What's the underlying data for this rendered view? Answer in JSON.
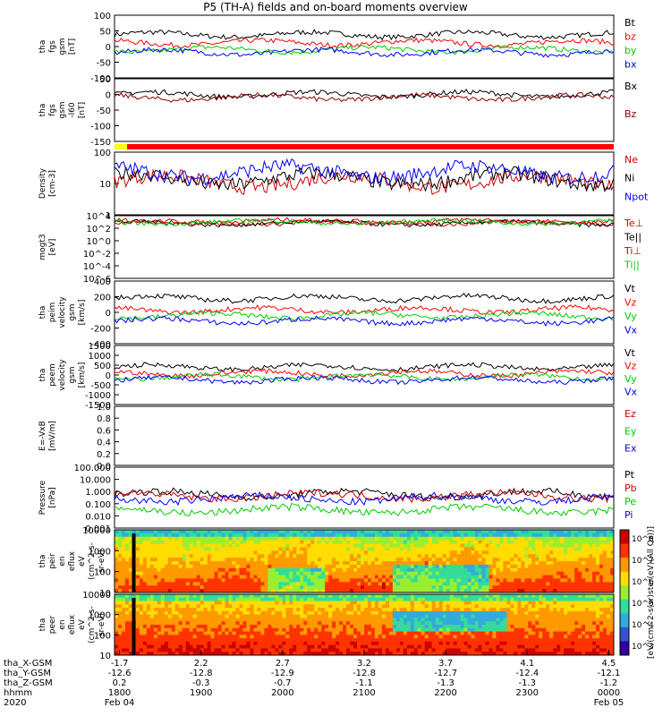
{
  "title": "P5 (TH-A) fields and on-board moments overview",
  "chart_data": {
    "type": "line",
    "x_range": [
      "1800",
      "0000"
    ],
    "panels": [
      {
        "id": "fgs-gsm",
        "ylabel": [
          "tha",
          "fgs",
          "gsm",
          "[nT]"
        ],
        "ylim": [
          -100,
          100
        ],
        "yticks": [
          "100",
          "50",
          "0",
          "-50",
          "-100"
        ],
        "series": [
          {
            "name": "Bt",
            "color": "#000000",
            "level": 38
          },
          {
            "name": "bz",
            "color": "#ff0000",
            "level": 12
          },
          {
            "name": "by",
            "color": "#00cc00",
            "level": -10
          },
          {
            "name": "bx",
            "color": "#0000ff",
            "level": -18
          }
        ]
      },
      {
        "id": "fgs-gsm-ll60",
        "ylabel": [
          "tha",
          "fgs",
          "gsm",
          "-l60",
          "[nT]"
        ],
        "ylim": [
          -150,
          50
        ],
        "yticks": [
          "50",
          "0",
          "-50",
          "-100",
          "-150"
        ],
        "series": [
          {
            "name": "Bx",
            "color": "#000000",
            "level": 0
          },
          {
            "name": "Bz",
            "color": "#8b0000",
            "level": -10
          }
        ]
      },
      {
        "id": "density",
        "ylabel": [
          "Density",
          "[cm-3]"
        ],
        "ylim": [
          0.5,
          200
        ],
        "log": true,
        "yticks": [
          "100",
          "10",
          "1"
        ],
        "series": [
          {
            "name": "Ne",
            "color": "#cc0000",
            "level": 12
          },
          {
            "name": "Ni",
            "color": "#000000",
            "level": 15
          },
          {
            "name": "Npot",
            "color": "#0000ff",
            "level": 30
          }
        ]
      },
      {
        "id": "temperature",
        "ylabel": [
          "mogt3",
          "[eV]"
        ],
        "ylim": [
          1e-05,
          10000
        ],
        "log": true,
        "yticks": [
          "10^4",
          "10^2",
          "10^0",
          "10^-2",
          "10^-4",
          "10^-6"
        ],
        "series": [
          {
            "name": "Te⊥",
            "color": "#cc0000",
            "level": 1000
          },
          {
            "name": "Te||",
            "color": "#000000",
            "level": 800
          },
          {
            "name": "Ti⊥",
            "color": "#cc0000",
            "level": 1500
          },
          {
            "name": "Ti||",
            "color": "#00cc00",
            "level": 1200
          }
        ]
      },
      {
        "id": "peim-velocity",
        "ylabel": [
          "tha",
          "peim",
          "velocity",
          "gsm",
          "[km/s]"
        ],
        "ylim": [
          -400,
          400
        ],
        "yticks": [
          "400",
          "200",
          "0",
          "-200",
          "-400"
        ],
        "series": [
          {
            "name": "Vt",
            "color": "#000000",
            "level": 180
          },
          {
            "name": "Vz",
            "color": "#ff0000",
            "level": 30
          },
          {
            "name": "Vy",
            "color": "#00cc00",
            "level": -40
          },
          {
            "name": "Vx",
            "color": "#0000ff",
            "level": -110
          }
        ]
      },
      {
        "id": "peem-velocity",
        "ylabel": [
          "tha",
          "peem",
          "velocity",
          "gsm",
          "[km/s]"
        ],
        "ylim": [
          -1500,
          1500
        ],
        "yticks": [
          "1500",
          "1000",
          "500",
          "0",
          "-500",
          "-1000",
          "-1500"
        ],
        "series": [
          {
            "name": "Vt",
            "color": "#000000",
            "level": 400
          },
          {
            "name": "Vz",
            "color": "#ff0000",
            "level": 80
          },
          {
            "name": "Vy",
            "color": "#00cc00",
            "level": -100
          },
          {
            "name": "Vx",
            "color": "#0000ff",
            "level": -250
          }
        ]
      },
      {
        "id": "efield",
        "ylabel": [
          "E=-VxB",
          "[mV/m]"
        ],
        "ylim": [
          0,
          1
        ],
        "yticks": [
          "1.0",
          "0.8",
          "0.6",
          "0.4",
          "0.2",
          "0.0"
        ],
        "series": [
          {
            "name": "Ez",
            "color": "#cc0000"
          },
          {
            "name": "Ey",
            "color": "#00cc00"
          },
          {
            "name": "Ex",
            "color": "#0000cc"
          }
        ]
      },
      {
        "id": "pressure",
        "ylabel": [
          "Pressure",
          "[nPa]"
        ],
        "ylim": [
          0.001,
          100
        ],
        "log": true,
        "yticks": [
          "100.000",
          "10.000",
          "1.000",
          "0.100",
          "0.010",
          "0.001"
        ],
        "series": [
          {
            "name": "Pt",
            "color": "#000000",
            "level": 0.6
          },
          {
            "name": "Pb",
            "color": "#cc0000",
            "level": 0.45
          },
          {
            "name": "Pe",
            "color": "#00cc00",
            "level": 0.03
          },
          {
            "name": "Pi",
            "color": "#0000ff",
            "level": 0.25
          }
        ]
      },
      {
        "id": "peir-eflux",
        "ylabel": [
          "tha",
          "peir",
          "en",
          "eflux",
          "eV",
          "(cm^2-s-",
          "sr-eV)"
        ],
        "ylim": [
          5,
          20000
        ],
        "log": true,
        "yticks": [
          "10000",
          "1000",
          "100",
          "10"
        ]
      },
      {
        "id": "peer-eflux",
        "ylabel": [
          "tha",
          "peer",
          "en",
          "eflux",
          "eV",
          "(cm^2-s-",
          "sr-eV)"
        ],
        "ylim": [
          5,
          20000
        ],
        "log": true,
        "yticks": [
          "10000",
          "1000",
          "100",
          "10"
        ]
      }
    ],
    "colorbar": {
      "label": "[eV/(cm^2-s(sr)ster(eV)(All Qs))]",
      "ticks": [
        "10^8",
        "10^7",
        "10^6",
        "10^5",
        "10^4",
        "10^3"
      ]
    },
    "xaxis": {
      "row_labels": [
        "tha_X-GSM",
        "tha_Y-GSM",
        "tha_Z-GSM",
        "hhmm",
        "2020"
      ],
      "columns": [
        {
          "x": "-1.7",
          "y": "-12.6",
          "z": "0.2",
          "hhmm": "1800",
          "date": "Feb 04"
        },
        {
          "x": "2.2",
          "y": "-12.8",
          "z": "-0.3",
          "hhmm": "1900",
          "date": ""
        },
        {
          "x": "2.7",
          "y": "-12.9",
          "z": "-0.7",
          "hhmm": "2000",
          "date": ""
        },
        {
          "x": "3.2",
          "y": "-12.8",
          "z": "-1.1",
          "hhmm": "2100",
          "date": ""
        },
        {
          "x": "3.7",
          "y": "-12.7",
          "z": "-1.3",
          "hhmm": "2200",
          "date": ""
        },
        {
          "x": "4.1",
          "y": "-12.4",
          "z": "-1.3",
          "hhmm": "2300",
          "date": ""
        },
        {
          "x": "4.5",
          "y": "-12.1",
          "z": "-1.2",
          "hhmm": "0000",
          "date": "Feb 05"
        }
      ]
    }
  }
}
